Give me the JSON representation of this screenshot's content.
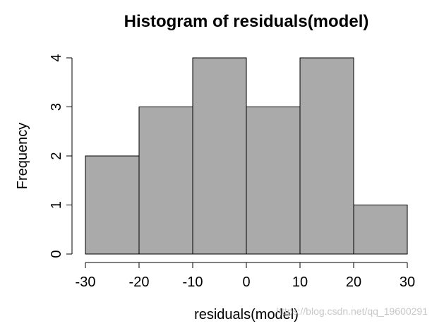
{
  "chart_data": {
    "type": "bar",
    "title": "Histogram of residuals(model)",
    "xlabel": "residuals(model)",
    "ylabel": "Frequency",
    "bins": [
      {
        "from": -30,
        "to": -20,
        "count": 2
      },
      {
        "from": -20,
        "to": -10,
        "count": 3
      },
      {
        "from": -10,
        "to": 0,
        "count": 4
      },
      {
        "from": 0,
        "to": 10,
        "count": 3
      },
      {
        "from": 10,
        "to": 20,
        "count": 4
      },
      {
        "from": 20,
        "to": 30,
        "count": 1
      }
    ],
    "xlim": [
      -30,
      30
    ],
    "ylim": [
      0,
      4
    ],
    "x_ticks": [
      "-30",
      "-20",
      "-10",
      "0",
      "10",
      "20",
      "30"
    ],
    "y_ticks": [
      "0",
      "1",
      "2",
      "3",
      "4"
    ],
    "bar_color": "#aaaaaa",
    "grid": false,
    "legend": "none"
  },
  "watermark": "https://blog.csdn.net/qq_19600291"
}
